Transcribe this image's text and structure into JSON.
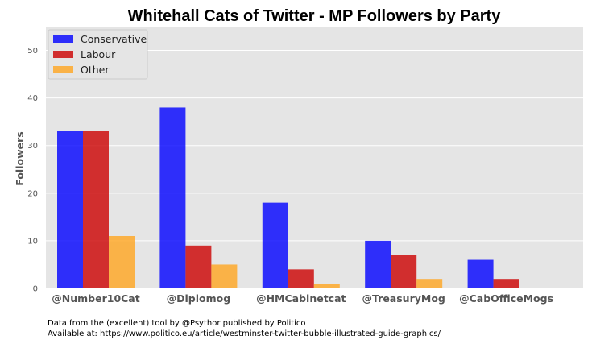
{
  "chart_data": {
    "type": "bar",
    "title": "Whitehall Cats of Twitter - MP Followers by Party",
    "xlabel": "",
    "ylabel": "Followers",
    "ylim": [
      0,
      55
    ],
    "yticks": [
      0,
      10,
      20,
      30,
      40,
      50
    ],
    "grid": true,
    "legend_position": "top-left",
    "categories": [
      "@Number10Cat",
      "@Diplomog",
      "@HMCabinetcat",
      "@TreasuryMog",
      "@CabOfficeMogs"
    ],
    "series": [
      {
        "name": "Conservative",
        "color": "#0000ff",
        "values": [
          33,
          38,
          18,
          10,
          6
        ]
      },
      {
        "name": "Labour",
        "color": "#cc0000",
        "values": [
          33,
          9,
          4,
          7,
          2
        ]
      },
      {
        "name": "Other",
        "color": "#ffa51f",
        "values": [
          11,
          5,
          1,
          2,
          0
        ]
      }
    ]
  },
  "footnote": {
    "line1": "Data from the (excellent) tool by @Psythor published by Politico",
    "line2": "Available at: https://www.politico.eu/article/westminster-twitter-bubble-illustrated-guide-graphics/"
  }
}
